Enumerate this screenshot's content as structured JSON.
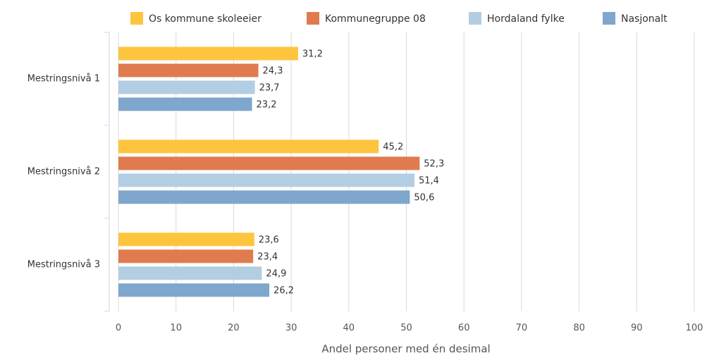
{
  "chart_data": {
    "type": "hbar",
    "x_label": "Andel personer med én desimal",
    "categories": [
      "Mestringsnivå 1",
      "Mestringsnivå 2",
      "Mestringsnivå 3"
    ],
    "series": [
      {
        "name": "Os kommune skoleeier",
        "color": "#fdc53e",
        "values": [
          31.2,
          45.2,
          23.6
        ],
        "value_labels": [
          "31,2",
          "45,2",
          "23,6"
        ]
      },
      {
        "name": "Kommunegruppe 08",
        "color": "#e07b4f",
        "values": [
          24.3,
          52.3,
          23.4
        ],
        "value_labels": [
          "24,3",
          "52,3",
          "23,4"
        ]
      },
      {
        "name": "Hordaland fylke",
        "color": "#b3cde3",
        "values": [
          23.7,
          51.4,
          24.9
        ],
        "value_labels": [
          "23,7",
          "51,4",
          "24,9"
        ]
      },
      {
        "name": "Nasjonalt",
        "color": "#7fa6cc",
        "values": [
          23.2,
          50.6,
          26.2
        ],
        "value_labels": [
          "23,2",
          "50,6",
          "26,2"
        ]
      }
    ],
    "xlim": [
      0,
      100
    ],
    "xticks": [
      0,
      10,
      20,
      30,
      40,
      50,
      60,
      70,
      80,
      90,
      100
    ],
    "grid": true,
    "legend": "top"
  }
}
